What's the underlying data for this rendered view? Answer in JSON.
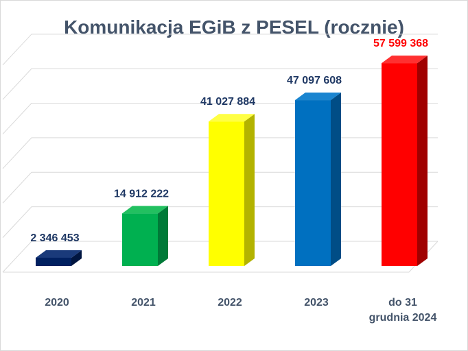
{
  "chart_data": {
    "type": "bar",
    "title": "Komunikacja EGiB z PESEL (rocznie)",
    "categories": [
      [
        "2020"
      ],
      [
        "2021"
      ],
      [
        "2022"
      ],
      [
        "2023"
      ],
      [
        "do 31",
        "grudnia 2024"
      ]
    ],
    "values": [
      2346453,
      14912222,
      41027884,
      47097608,
      57599368
    ],
    "data_labels": [
      "2 346 453",
      "14 912 222",
      "41 027 884",
      "47 097 608",
      "57 599 368"
    ],
    "colors": [
      "#002060",
      "#00b050",
      "#ffff00",
      "#0070c0",
      "#ff0000"
    ],
    "side_colors": [
      "#001540",
      "#007a38",
      "#b3b300",
      "#004d86",
      "#a00000"
    ],
    "top_colors": [
      "#1a3a7a",
      "#22c060",
      "#ffff44",
      "#1a85d0",
      "#ff3030"
    ],
    "label_colors": [
      "#1f3864",
      "#1f3864",
      "#1f3864",
      "#1f3864",
      "#ff0000"
    ],
    "ylim": [
      0,
      60000000
    ],
    "grid": true,
    "legend": "none"
  }
}
